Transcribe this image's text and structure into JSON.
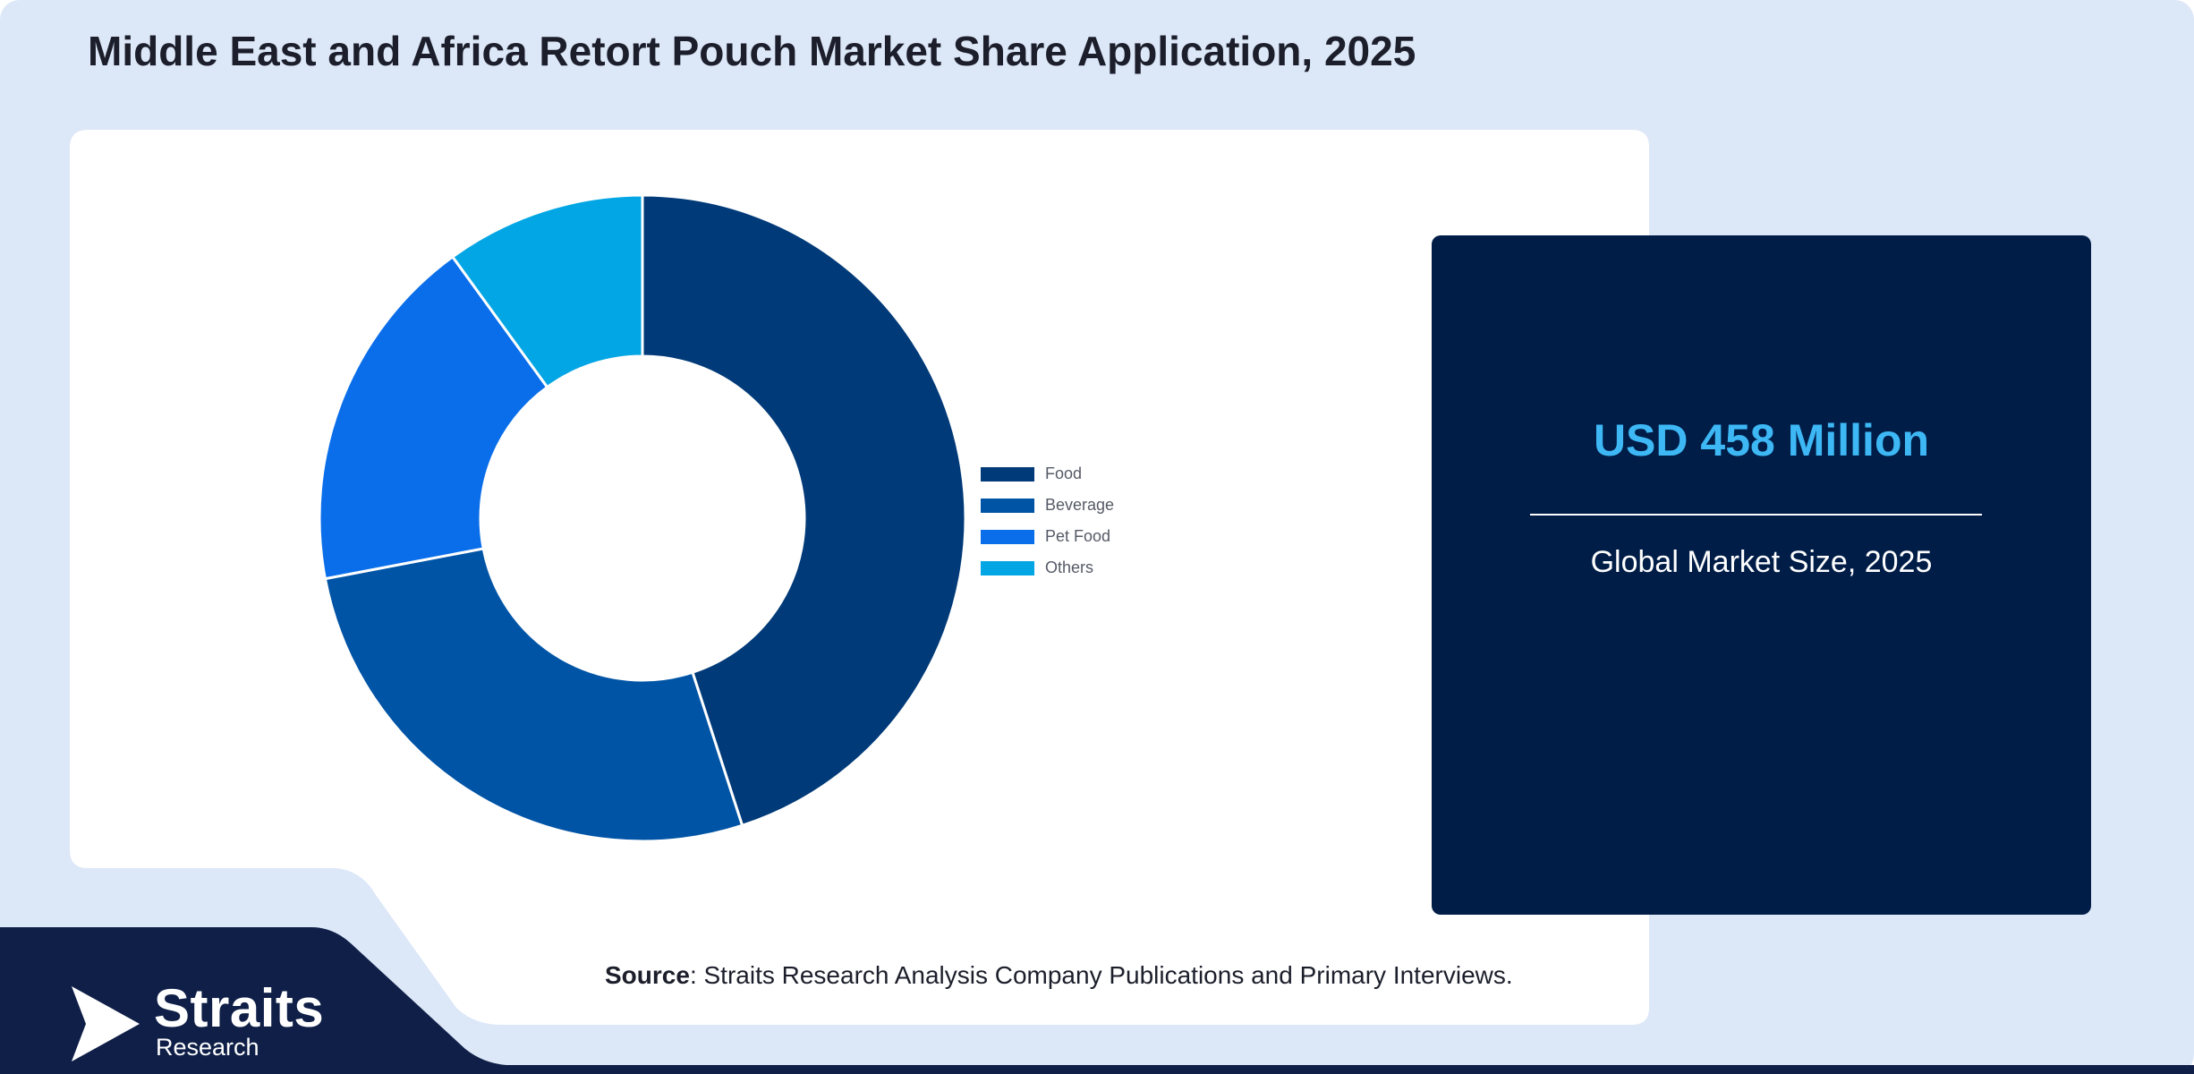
{
  "title": "Middle East and Africa Retort Pouch Market Share Application, 2025",
  "stat": {
    "value": "USD 458 Million",
    "label": "Global Market Size, 2025"
  },
  "source": {
    "key": "Source",
    "text": ": Straits Research Analysis Company Publications and Primary Interviews."
  },
  "logo": {
    "word": "Straits",
    "sub": "Research"
  },
  "colors": {
    "background": "#dce7f8",
    "panel": "#ffffff",
    "stat_box": "#001d48",
    "stat_value": "#3db8f5",
    "footer_band": "#0f1f47"
  },
  "chart_data": {
    "type": "pie",
    "title": "",
    "donut": true,
    "legend_position": "right",
    "categories": [
      "Food",
      "Beverage",
      "Pet Food",
      "Others"
    ],
    "values": [
      45,
      27,
      18,
      10
    ],
    "colors": [
      "#003a78",
      "#0054a6",
      "#0a6eea",
      "#03a6e4"
    ]
  }
}
